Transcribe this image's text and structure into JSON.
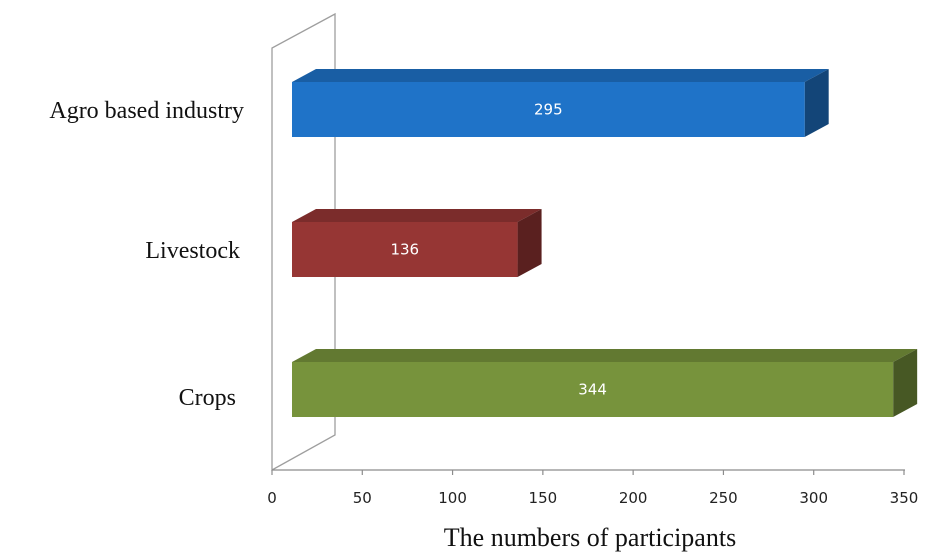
{
  "chart_data": {
    "type": "bar",
    "orientation": "horizontal",
    "style": "3d",
    "categories": [
      "Agro based industry",
      "Livestock",
      "Crops"
    ],
    "values": [
      295,
      136,
      344
    ],
    "data_labels": [
      "295",
      "136",
      "344"
    ],
    "colors": [
      "#1f73c8",
      "#963634",
      "#77933c"
    ],
    "xlabel": "The numbers of participants",
    "ylabel": "",
    "xlim": [
      0,
      350
    ],
    "xticks": [
      "0",
      "50",
      "100",
      "150",
      "200",
      "250",
      "300",
      "350"
    ],
    "grid": false,
    "legend": "none"
  }
}
